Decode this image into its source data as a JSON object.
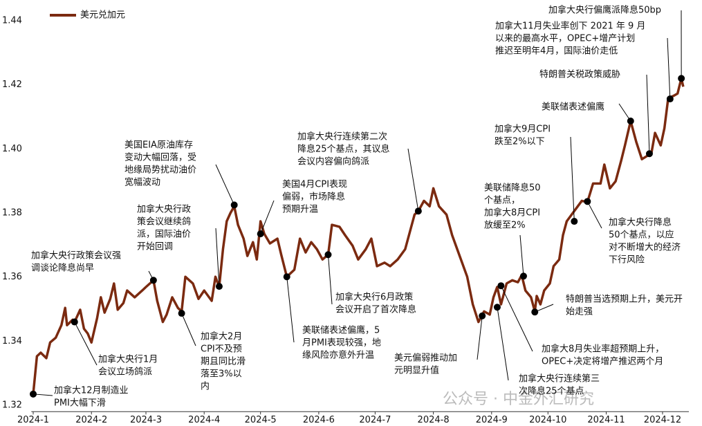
{
  "chart_data": {
    "type": "line",
    "legend": "upper left",
    "watermark": "公众号 · 中金外汇研究",
    "xlim": [
      -1,
      349
    ],
    "xticks": [
      {
        "value": 0,
        "label": "2024-1"
      },
      {
        "value": 31,
        "label": "2024-2"
      },
      {
        "value": 60,
        "label": "2024-3"
      },
      {
        "value": 91,
        "label": "2024-4"
      },
      {
        "value": 121,
        "label": "2024-5"
      },
      {
        "value": 152,
        "label": "2024-6"
      },
      {
        "value": 182,
        "label": "2024-7"
      },
      {
        "value": 213,
        "label": "2024-8"
      },
      {
        "value": 244,
        "label": "2024-9"
      },
      {
        "value": 274,
        "label": "2024-10"
      },
      {
        "value": 305,
        "label": "2024-11"
      },
      {
        "value": 335,
        "label": "2024-12"
      }
    ],
    "ylim": [
      1.318,
      1.445
    ],
    "yticks": [
      1.32,
      1.34,
      1.36,
      1.38,
      {
        "value": 1.4,
        "label": "1.40"
      },
      1.42,
      1.44
    ],
    "x": [
      0,
      2,
      4,
      7,
      9,
      12,
      15,
      17,
      18,
      21,
      22,
      25,
      27,
      29,
      31,
      34,
      36,
      38,
      41,
      43,
      45,
      48,
      50,
      54,
      58,
      60,
      64,
      66,
      69,
      71,
      74,
      77,
      79,
      81,
      85,
      88,
      91,
      95,
      97,
      99,
      101,
      103,
      105,
      107,
      109,
      112,
      114,
      117,
      119,
      121,
      123,
      126,
      130,
      132,
      135,
      139,
      142,
      145,
      148,
      151,
      154,
      157,
      159,
      163,
      166,
      170,
      173,
      177,
      180,
      183,
      187,
      190,
      194,
      198,
      201,
      203,
      205,
      208,
      211,
      213,
      216,
      220,
      223,
      227,
      231,
      234,
      237,
      240,
      243,
      245,
      247,
      249,
      252,
      255,
      258,
      260,
      262,
      265,
      267,
      268,
      270,
      272,
      275,
      277,
      280,
      282,
      284,
      288,
      292,
      295,
      298,
      302,
      304,
      307,
      310,
      313,
      315,
      318,
      321,
      324,
      327,
      329,
      331,
      334,
      336,
      338,
      341,
      343,
      345,
      346
    ],
    "series": [
      {
        "name": "美元兑加元",
        "color": "#7b2a10",
        "values": [
          1.3235,
          1.3353,
          1.3364,
          1.3347,
          1.3396,
          1.3411,
          1.345,
          1.3504,
          1.345,
          1.3467,
          1.346,
          1.3498,
          1.3439,
          1.3424,
          1.3396,
          1.3472,
          1.3537,
          1.3489,
          1.3532,
          1.358,
          1.3498,
          1.3519,
          1.3558,
          1.3537,
          1.3558,
          1.3569,
          1.359,
          1.3526,
          1.346,
          1.3483,
          1.3537,
          1.3504,
          1.3493,
          1.3601,
          1.358,
          1.3532,
          1.3558,
          1.3526,
          1.3601,
          1.3569,
          1.3687,
          1.3774,
          1.38,
          1.3821,
          1.3763,
          1.372,
          1.3666,
          1.3709,
          1.3655,
          1.3774,
          1.3735,
          1.3705,
          1.372,
          1.367,
          1.3601,
          1.3623,
          1.372,
          1.3677,
          1.3709,
          1.3687,
          1.3655,
          1.367,
          1.3763,
          1.3757,
          1.3731,
          1.3698,
          1.3655,
          1.3687,
          1.372,
          1.3634,
          1.3645,
          1.3634,
          1.3655,
          1.3687,
          1.3752,
          1.3795,
          1.3806,
          1.3838,
          1.3821,
          1.3877,
          1.3821,
          1.3795,
          1.3731,
          1.3666,
          1.3601,
          1.3515,
          1.346,
          1.3493,
          1.3483,
          1.3537,
          1.3569,
          1.3515,
          1.358,
          1.359,
          1.3584,
          1.3606,
          1.3558,
          1.3537,
          1.3493,
          1.3541,
          1.3515,
          1.3558,
          1.358,
          1.3634,
          1.3655,
          1.3731,
          1.3774,
          1.3806,
          1.3838,
          1.3834,
          1.3892,
          1.3892,
          1.3951,
          1.3877,
          1.3899,
          1.3964,
          1.4011,
          1.4087,
          1.4022,
          1.3968,
          1.3979,
          1.3985,
          1.405,
          1.4011,
          1.4065,
          1.4158,
          1.4166,
          1.4173,
          1.422,
          1.4194
        ]
      }
    ],
    "annotations": [
      {
        "x": 0,
        "y": 1.3235,
        "text": [
          "加拿大12月制造业",
          "PMI大幅下滑"
        ]
      },
      {
        "x": 22,
        "y": 1.346,
        "text": [
          "加拿大央行1月",
          "会议立场鸽派"
        ]
      },
      {
        "x": 64,
        "y": 1.359,
        "text": [
          "加拿大央行政策会议强",
          "调谈论降息尚早"
        ]
      },
      {
        "x": 79,
        "y": 1.3487,
        "text": [
          "加拿大2月",
          "CPI不及预",
          "期且同比滑",
          "落至3%以",
          "内"
        ]
      },
      {
        "x": 99,
        "y": 1.3571,
        "text": [
          "加拿大央行政",
          "策会议继续鸽",
          "派，国际油价",
          "开始回调"
        ]
      },
      {
        "x": 107,
        "y": 1.3825,
        "text": [
          "美国EIA原油库存",
          "变动大幅回落，受",
          "地缘局势扰动油价",
          "宽幅波动"
        ]
      },
      {
        "x": 121,
        "y": 1.3735,
        "text": [
          "美国4月CPI表现",
          "偏弱，市场降息",
          "预期升温"
        ]
      },
      {
        "x": 135,
        "y": 1.3601,
        "text": [
          "美联储表述偏鹰，5",
          "月PMI表现较强，地",
          "缘风险亦意外升温"
        ]
      },
      {
        "x": 157,
        "y": 1.367,
        "text": [
          "加拿大央行6月政策",
          "会议开启了首次降息"
        ]
      },
      {
        "x": 205,
        "y": 1.3806,
        "text": [
          "加拿大央行连续第二次",
          "降息25个基点，其议息",
          "会议内容偏向鸽派"
        ]
      },
      {
        "x": 239,
        "y": 1.3479,
        "text": [
          "美元偏弱推动加",
          "元明显升值"
        ]
      },
      {
        "x": 247,
        "y": 1.3506,
        "text": [
          "加拿大央行连续第三",
          "次降息25个基点"
        ]
      },
      {
        "x": 249,
        "y": 1.3573,
        "text": [
          "加拿大8月失业率超预期上升，",
          "OPEC+决定将增产推迟两个月"
        ]
      },
      {
        "x": 261,
        "y": 1.3603,
        "text": [
          "美联储降息50",
          "个基点，",
          "加拿大8月CPI",
          "放缓至2%"
        ]
      },
      {
        "x": 267,
        "y": 1.3491,
        "text": [
          "特朗普当选预期上升，美元开",
          "始走强"
        ]
      },
      {
        "x": 288,
        "y": 1.3774,
        "text": [
          "加拿大9月CPI",
          "跌至2%以下"
        ]
      },
      {
        "x": 295,
        "y": 1.3836,
        "text": [
          "加拿大央行降息",
          "50个基点，以应",
          "对不断增大的经济",
          "下行风险"
        ]
      },
      {
        "x": 318,
        "y": 1.4087,
        "text": [
          "美联储表述偏鹰"
        ]
      },
      {
        "x": 328,
        "y": 1.3985,
        "text": [
          "特朗普关税政策威胁"
        ]
      },
      {
        "x": 339,
        "y": 1.4156,
        "text": [
          "加拿大11月失业率创下 2021 年 9 月",
          "以来的最高水平，OPEC+增产计划",
          "推迟至明年4月，国际油价走低"
        ]
      },
      {
        "x": 345,
        "y": 1.422,
        "text": [
          "加拿大央行偏鹰派降息50bp"
        ]
      }
    ]
  }
}
